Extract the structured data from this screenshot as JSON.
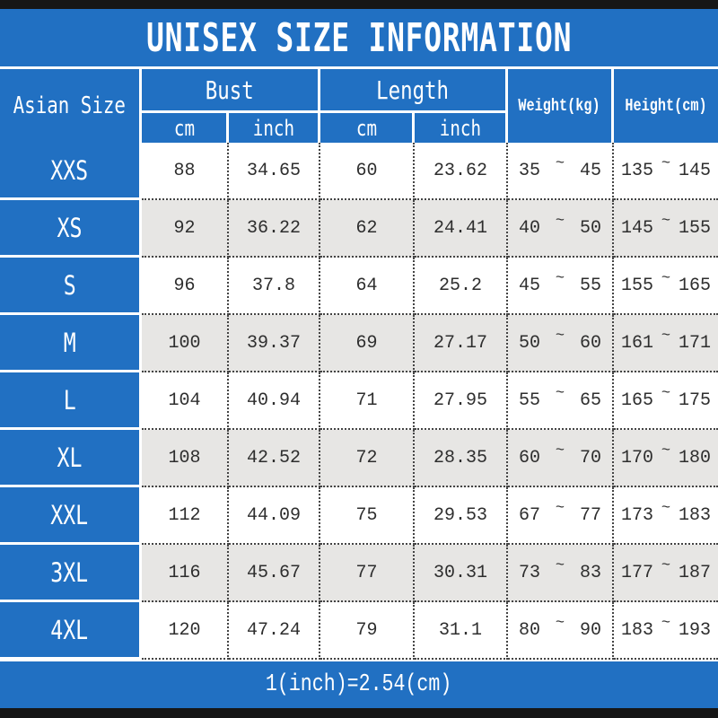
{
  "title": "UNISEX SIZE INFORMATION",
  "footer_note": "1(inch)=2.54(cm)",
  "colors": {
    "blue": "#2170c2",
    "black_bar": "#161616",
    "alt_row": "#e7e6e4",
    "text": "#2e2e2e"
  },
  "table": {
    "headers": {
      "asian_size": "Asian Size",
      "bust": "Bust",
      "length": "Length",
      "weight": "Weight(kg)",
      "height": "Height(cm)",
      "bust_cm": "cm",
      "bust_inch": "inch",
      "length_cm": "cm",
      "length_inch": "inch"
    },
    "tilde": "~",
    "rows": [
      {
        "size": "XXS",
        "bust_cm": "88",
        "bust_inch": "34.65",
        "length_cm": "60",
        "length_inch": "23.62",
        "weight_min": "35",
        "weight_max": "45",
        "height_min": "135",
        "height_max": "145"
      },
      {
        "size": "XS",
        "bust_cm": "92",
        "bust_inch": "36.22",
        "length_cm": "62",
        "length_inch": "24.41",
        "weight_min": "40",
        "weight_max": "50",
        "height_min": "145",
        "height_max": "155"
      },
      {
        "size": "S",
        "bust_cm": "96",
        "bust_inch": "37.8",
        "length_cm": "64",
        "length_inch": "25.2",
        "weight_min": "45",
        "weight_max": "55",
        "height_min": "155",
        "height_max": "165"
      },
      {
        "size": "M",
        "bust_cm": "100",
        "bust_inch": "39.37",
        "length_cm": "69",
        "length_inch": "27.17",
        "weight_min": "50",
        "weight_max": "60",
        "height_min": "161",
        "height_max": "171"
      },
      {
        "size": "L",
        "bust_cm": "104",
        "bust_inch": "40.94",
        "length_cm": "71",
        "length_inch": "27.95",
        "weight_min": "55",
        "weight_max": "65",
        "height_min": "165",
        "height_max": "175"
      },
      {
        "size": "XL",
        "bust_cm": "108",
        "bust_inch": "42.52",
        "length_cm": "72",
        "length_inch": "28.35",
        "weight_min": "60",
        "weight_max": "70",
        "height_min": "170",
        "height_max": "180"
      },
      {
        "size": "XXL",
        "bust_cm": "112",
        "bust_inch": "44.09",
        "length_cm": "75",
        "length_inch": "29.53",
        "weight_min": "67",
        "weight_max": "77",
        "height_min": "173",
        "height_max": "183"
      },
      {
        "size": "3XL",
        "bust_cm": "116",
        "bust_inch": "45.67",
        "length_cm": "77",
        "length_inch": "30.31",
        "weight_min": "73",
        "weight_max": "83",
        "height_min": "177",
        "height_max": "187"
      },
      {
        "size": "4XL",
        "bust_cm": "120",
        "bust_inch": "47.24",
        "length_cm": "79",
        "length_inch": "31.1",
        "weight_min": "80",
        "weight_max": "90",
        "height_min": "183",
        "height_max": "193"
      }
    ]
  },
  "chart_data": {
    "type": "table",
    "title": "UNISEX SIZE INFORMATION",
    "columns": [
      "Asian Size",
      "Bust cm",
      "Bust inch",
      "Length cm",
      "Length inch",
      "Weight(kg)",
      "Height(cm)"
    ],
    "rows": [
      [
        "XXS",
        88,
        34.65,
        60,
        23.62,
        "35~45",
        "135~145"
      ],
      [
        "XS",
        92,
        36.22,
        62,
        24.41,
        "40~50",
        "145~155"
      ],
      [
        "S",
        96,
        37.8,
        64,
        25.2,
        "45~55",
        "155~165"
      ],
      [
        "M",
        100,
        39.37,
        69,
        27.17,
        "50~60",
        "161~171"
      ],
      [
        "L",
        104,
        40.94,
        71,
        27.95,
        "55~65",
        "165~175"
      ],
      [
        "XL",
        108,
        42.52,
        72,
        28.35,
        "60~70",
        "170~180"
      ],
      [
        "XXL",
        112,
        44.09,
        75,
        29.53,
        "67~77",
        "173~183"
      ],
      [
        "3XL",
        116,
        45.67,
        77,
        30.31,
        "73~83",
        "177~187"
      ],
      [
        "4XL",
        120,
        47.24,
        79,
        31.1,
        "80~90",
        "183~193"
      ]
    ],
    "note": "1(inch)=2.54(cm)"
  }
}
